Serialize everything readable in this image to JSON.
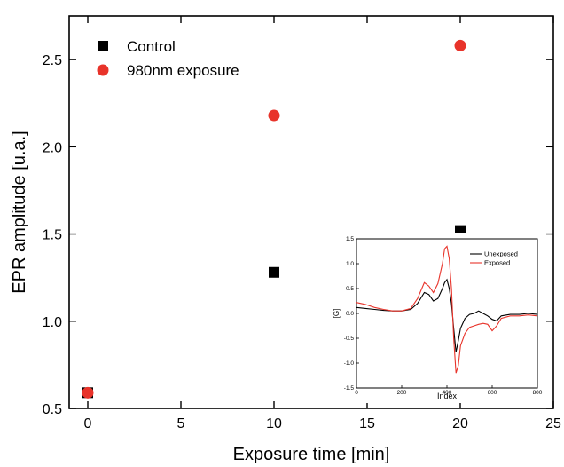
{
  "chart_data": [
    {
      "type": "scatter",
      "xlabel": "Exposure time [min]",
      "ylabel": "EPR amplitude [u.a.]",
      "xlim": [
        -1,
        25
      ],
      "ylim": [
        0.5,
        2.75
      ],
      "xticks": [
        0,
        5,
        10,
        15,
        20,
        25
      ],
      "xtick_labels": [
        "0",
        "5",
        "10",
        "15",
        "20",
        "25"
      ],
      "yticks": [
        0.5,
        1.0,
        1.5,
        2.0,
        2.5
      ],
      "ytick_labels": [
        "0.5",
        "1.0",
        "1.5",
        "2.0",
        "2.5"
      ],
      "grid": false,
      "legend_position": "top-left",
      "series": [
        {
          "name": "Control",
          "marker": "square",
          "color": "#000000",
          "x": [
            0,
            10,
            20
          ],
          "y": [
            0.59,
            1.28,
            1.52
          ]
        },
        {
          "name": "980nm exposure",
          "marker": "circle",
          "color": "#e8332a",
          "x": [
            0,
            10,
            20
          ],
          "y": [
            0.59,
            2.18,
            2.58
          ]
        }
      ]
    },
    {
      "type": "line",
      "role": "inset",
      "xlabel": "Index",
      "ylabel": "[G]",
      "xlim": [
        0,
        800
      ],
      "ylim": [
        -1.5,
        1.5
      ],
      "xticks": [
        0,
        200,
        400,
        600,
        800
      ],
      "xtick_labels": [
        "0",
        "200",
        "400",
        "600",
        "800"
      ],
      "yticks": [
        -1.5,
        -1.0,
        -0.5,
        0.0,
        0.5,
        1.0,
        1.5
      ],
      "ytick_labels": [
        "-1.5",
        "-1.0",
        "-0.5",
        "0.0",
        "0.5",
        "1.0",
        "1.5"
      ],
      "legend_position": "top-right",
      "series": [
        {
          "name": "Unexposed",
          "color": "#000000",
          "x": [
            0,
            40,
            80,
            120,
            160,
            200,
            240,
            270,
            300,
            320,
            340,
            360,
            380,
            390,
            400,
            410,
            420,
            430,
            440,
            450,
            460,
            480,
            500,
            520,
            540,
            560,
            580,
            600,
            620,
            640,
            680,
            720,
            760,
            800
          ],
          "y": [
            0.12,
            0.1,
            0.08,
            0.06,
            0.05,
            0.05,
            0.08,
            0.2,
            0.42,
            0.38,
            0.25,
            0.3,
            0.5,
            0.62,
            0.68,
            0.5,
            0.2,
            -0.3,
            -0.78,
            -0.55,
            -0.3,
            -0.1,
            -0.02,
            0.0,
            0.05,
            0.0,
            -0.05,
            -0.12,
            -0.15,
            -0.05,
            -0.02,
            -0.02,
            0.0,
            -0.02
          ]
        },
        {
          "name": "Exposed",
          "color": "#e8332a",
          "x": [
            0,
            40,
            80,
            120,
            160,
            200,
            240,
            270,
            300,
            320,
            340,
            360,
            380,
            390,
            400,
            410,
            420,
            430,
            440,
            450,
            460,
            480,
            500,
            520,
            540,
            560,
            580,
            600,
            620,
            640,
            680,
            720,
            760,
            800
          ],
          "y": [
            0.22,
            0.18,
            0.12,
            0.08,
            0.05,
            0.05,
            0.1,
            0.3,
            0.62,
            0.55,
            0.42,
            0.6,
            1.0,
            1.3,
            1.35,
            1.1,
            0.5,
            -0.5,
            -1.2,
            -1.05,
            -0.65,
            -0.4,
            -0.28,
            -0.25,
            -0.22,
            -0.2,
            -0.22,
            -0.35,
            -0.25,
            -0.1,
            -0.05,
            -0.05,
            -0.03,
            -0.05
          ]
        }
      ]
    }
  ]
}
